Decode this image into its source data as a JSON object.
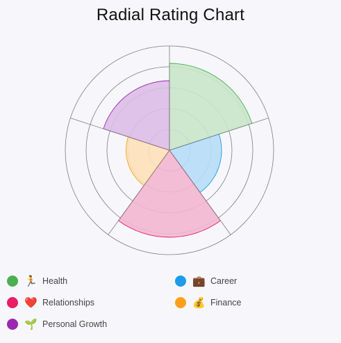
{
  "title": "Radial Rating Chart",
  "chart_data": {
    "type": "polar-area",
    "title": "Radial Rating Chart",
    "scale": {
      "min": 0,
      "max": 6,
      "rings": 5,
      "grid": true
    },
    "categories": [
      "Health",
      "Career",
      "Relationships",
      "Finance",
      "Personal Growth"
    ],
    "values": [
      5,
      3,
      5,
      2.5,
      4
    ],
    "legend_placement": "bottom"
  },
  "legend": [
    {
      "label": "Health",
      "emoji": "🏃",
      "color": "#4caf50",
      "fill": "#c8e6c9"
    },
    {
      "label": "Career",
      "emoji": "💼",
      "color": "#1e9be9",
      "fill": "#b7dcf7"
    },
    {
      "label": "Relationships",
      "emoji": "❤️",
      "color": "#e91e63",
      "fill": "#f2b6d0"
    },
    {
      "label": "Finance",
      "emoji": "💰",
      "color": "#ff9f1c",
      "fill": "#fde0b8"
    },
    {
      "label": "Personal Growth",
      "emoji": "🌱",
      "color": "#9c27b0",
      "fill": "#dcbde6"
    }
  ]
}
